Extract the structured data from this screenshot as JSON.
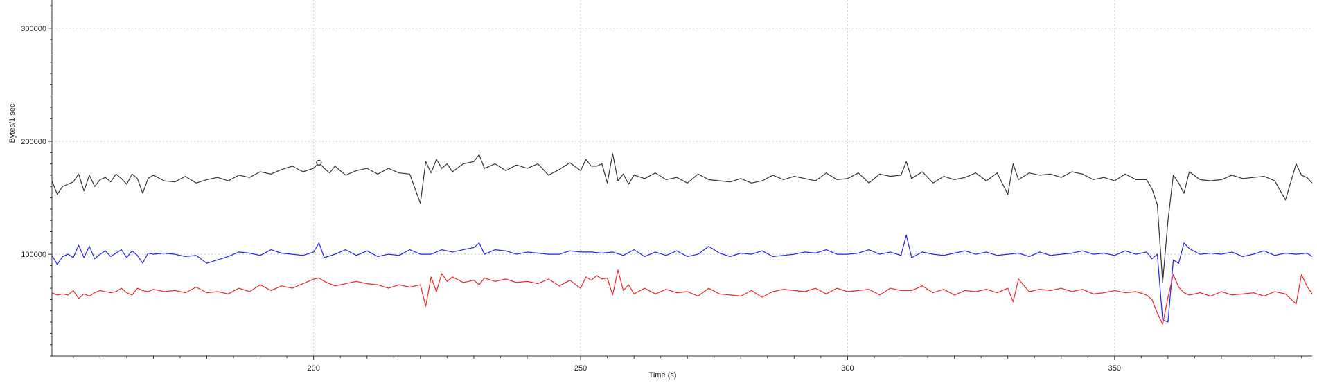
{
  "chart_data": {
    "type": "line",
    "xlabel": "Time (s)",
    "ylabel": "Bytes/1 sec",
    "xlim": [
      151,
      387
    ],
    "ylim": [
      10000,
      325000
    ],
    "x_ticks": [
      200,
      250,
      300,
      350
    ],
    "y_ticks": [
      100000,
      200000,
      300000
    ],
    "x_tick_labels": [
      "200",
      "250",
      "300",
      "350"
    ],
    "y_tick_labels": [
      "100000",
      "200000",
      "300000"
    ],
    "grid": true,
    "marker": {
      "x": 201,
      "y": 181000
    },
    "series": [
      {
        "color": "#333333",
        "x": [
          151,
          152,
          153,
          154,
          155,
          156,
          157,
          158,
          159,
          160,
          161,
          162,
          163,
          164,
          165,
          166,
          167,
          168,
          169,
          170,
          172,
          174,
          176,
          178,
          180,
          182,
          184,
          186,
          188,
          190,
          192,
          194,
          196,
          198,
          200,
          201,
          202,
          203,
          204,
          206,
          208,
          210,
          212,
          214,
          216,
          218,
          220,
          221,
          222,
          223,
          224,
          225,
          226,
          228,
          230,
          231,
          232,
          234,
          236,
          238,
          240,
          242,
          244,
          246,
          248,
          250,
          251,
          252,
          253,
          254,
          255,
          256,
          257,
          258,
          259,
          260,
          262,
          264,
          266,
          268,
          270,
          272,
          274,
          276,
          278,
          280,
          282,
          284,
          286,
          288,
          290,
          292,
          294,
          296,
          298,
          300,
          302,
          304,
          306,
          308,
          310,
          311,
          312,
          314,
          316,
          318,
          320,
          322,
          324,
          326,
          328,
          330,
          331,
          332,
          334,
          336,
          338,
          340,
          342,
          344,
          346,
          348,
          350,
          352,
          354,
          356,
          357,
          358,
          359,
          360,
          361,
          362,
          363,
          364,
          366,
          368,
          370,
          372,
          374,
          376,
          378,
          380,
          382,
          384,
          385,
          386,
          387
        ],
        "y": [
          165000,
          153000,
          160000,
          162000,
          164000,
          171000,
          156000,
          170000,
          160000,
          166000,
          168000,
          164000,
          171000,
          167000,
          162000,
          171000,
          167000,
          154000,
          167000,
          170000,
          165000,
          164000,
          169000,
          163000,
          166000,
          168000,
          165000,
          170000,
          168000,
          173000,
          171000,
          175000,
          178000,
          173000,
          176000,
          181000,
          176000,
          172000,
          178000,
          170000,
          174000,
          176000,
          171000,
          176000,
          172000,
          171000,
          145000,
          182000,
          172000,
          184000,
          176000,
          180000,
          173000,
          180000,
          182000,
          188000,
          176000,
          180000,
          174000,
          179000,
          176000,
          180000,
          170000,
          175000,
          181000,
          174000,
          184000,
          178000,
          178000,
          180000,
          163000,
          189000,
          165000,
          171000,
          162000,
          170000,
          167000,
          172000,
          166000,
          168000,
          163000,
          171000,
          166000,
          165000,
          164000,
          167000,
          163000,
          165000,
          170000,
          166000,
          169000,
          167000,
          165000,
          172000,
          166000,
          167000,
          172000,
          163000,
          171000,
          169000,
          170000,
          182000,
          167000,
          173000,
          163000,
          169000,
          166000,
          168000,
          172000,
          165000,
          172000,
          153000,
          180000,
          166000,
          172000,
          170000,
          171000,
          168000,
          173000,
          171000,
          166000,
          168000,
          165000,
          171000,
          166000,
          166000,
          158000,
          144000,
          75000,
          130000,
          170000,
          163000,
          154000,
          173000,
          166000,
          165000,
          166000,
          170000,
          167000,
          168000,
          169000,
          165000,
          148000,
          180000,
          170000,
          168000,
          163000
        ]
      },
      {
        "color": "#2222ee",
        "x": [
          151,
          152,
          153,
          154,
          155,
          156,
          157,
          158,
          159,
          160,
          161,
          162,
          163,
          164,
          165,
          166,
          167,
          168,
          169,
          170,
          172,
          174,
          176,
          178,
          180,
          182,
          184,
          186,
          188,
          190,
          192,
          194,
          196,
          198,
          200,
          201,
          202,
          204,
          206,
          208,
          210,
          212,
          214,
          216,
          218,
          220,
          222,
          224,
          226,
          228,
          230,
          231,
          232,
          234,
          236,
          238,
          240,
          242,
          244,
          246,
          248,
          250,
          252,
          254,
          256,
          258,
          260,
          262,
          264,
          266,
          268,
          270,
          272,
          274,
          276,
          278,
          280,
          282,
          284,
          286,
          288,
          290,
          292,
          294,
          296,
          298,
          300,
          302,
          304,
          306,
          308,
          310,
          311,
          312,
          314,
          316,
          318,
          320,
          322,
          324,
          326,
          328,
          330,
          332,
          334,
          336,
          338,
          340,
          342,
          344,
          346,
          348,
          350,
          352,
          354,
          356,
          357,
          358,
          359,
          360,
          361,
          362,
          363,
          364,
          366,
          368,
          370,
          372,
          374,
          376,
          378,
          380,
          382,
          384,
          386,
          387
        ],
        "y": [
          99000,
          91000,
          98000,
          100000,
          97000,
          108000,
          97000,
          107000,
          96000,
          100000,
          103000,
          98000,
          101000,
          104000,
          97000,
          103000,
          99000,
          92000,
          101000,
          100000,
          101000,
          100000,
          98000,
          99000,
          92000,
          95000,
          98000,
          102000,
          101000,
          99000,
          104000,
          101000,
          100000,
          99000,
          102000,
          110000,
          97000,
          100000,
          104000,
          99000,
          103000,
          98000,
          100000,
          99000,
          104000,
          100000,
          100000,
          104000,
          102000,
          104000,
          106000,
          110000,
          100000,
          104000,
          103000,
          100000,
          102000,
          101000,
          100000,
          100000,
          103000,
          102000,
          102000,
          101000,
          102000,
          99000,
          104000,
          98000,
          102000,
          99000,
          103000,
          98000,
          100000,
          107000,
          101000,
          98000,
          101000,
          100000,
          103000,
          98000,
          99000,
          100000,
          102000,
          101000,
          104000,
          100000,
          100000,
          101000,
          104000,
          100000,
          102000,
          99000,
          117000,
          97000,
          102000,
          100000,
          99000,
          101000,
          103000,
          100000,
          102000,
          99000,
          100000,
          101000,
          98000,
          102000,
          99000,
          100000,
          101000,
          103000,
          100000,
          101000,
          99000,
          103000,
          100000,
          102000,
          96000,
          100000,
          42000,
          40000,
          95000,
          92000,
          110000,
          105000,
          100000,
          101000,
          100000,
          102000,
          98000,
          100000,
          103000,
          99000,
          101000,
          100000,
          101000,
          98000
        ]
      },
      {
        "color": "#ee2222",
        "x": [
          151,
          152,
          153,
          154,
          155,
          156,
          157,
          158,
          159,
          160,
          161,
          162,
          163,
          164,
          165,
          166,
          167,
          168,
          169,
          170,
          172,
          174,
          176,
          178,
          180,
          182,
          184,
          186,
          188,
          190,
          192,
          194,
          196,
          198,
          200,
          201,
          202,
          204,
          206,
          208,
          210,
          212,
          214,
          216,
          218,
          220,
          221,
          222,
          223,
          224,
          225,
          226,
          228,
          230,
          231,
          232,
          234,
          236,
          238,
          240,
          242,
          244,
          246,
          248,
          250,
          251,
          252,
          253,
          254,
          255,
          256,
          257,
          258,
          259,
          260,
          262,
          264,
          266,
          268,
          270,
          272,
          274,
          276,
          278,
          280,
          282,
          284,
          286,
          288,
          290,
          292,
          294,
          296,
          298,
          300,
          302,
          304,
          306,
          308,
          310,
          312,
          314,
          316,
          318,
          320,
          322,
          324,
          326,
          328,
          330,
          331,
          332,
          334,
          336,
          338,
          340,
          342,
          344,
          346,
          348,
          350,
          352,
          354,
          356,
          357,
          358,
          359,
          360,
          361,
          362,
          363,
          364,
          366,
          368,
          370,
          372,
          374,
          376,
          378,
          380,
          382,
          384,
          385,
          386,
          387
        ],
        "y": [
          66000,
          64000,
          65000,
          64000,
          68000,
          61000,
          65000,
          63000,
          66000,
          68000,
          67000,
          66000,
          67000,
          70000,
          66000,
          64000,
          70000,
          68000,
          67000,
          69000,
          67000,
          68000,
          66000,
          71000,
          66000,
          67000,
          65000,
          70000,
          67000,
          73000,
          68000,
          72000,
          70000,
          74000,
          78000,
          79000,
          76000,
          72000,
          74000,
          76000,
          74000,
          73000,
          70000,
          73000,
          71000,
          73000,
          54000,
          80000,
          67000,
          83000,
          76000,
          80000,
          75000,
          77000,
          73000,
          79000,
          76000,
          78000,
          75000,
          76000,
          74000,
          78000,
          72000,
          77000,
          70000,
          80000,
          77000,
          81000,
          78000,
          79000,
          64000,
          86000,
          68000,
          73000,
          65000,
          70000,
          65000,
          69000,
          66000,
          67000,
          63000,
          70000,
          65000,
          64000,
          63000,
          68000,
          62000,
          67000,
          69000,
          68000,
          67000,
          70000,
          65000,
          70000,
          67000,
          68000,
          69000,
          64000,
          70000,
          68000,
          68000,
          72000,
          66000,
          69000,
          64000,
          68000,
          67000,
          69000,
          66000,
          70000,
          58000,
          78000,
          67000,
          69000,
          68000,
          70000,
          67000,
          69000,
          65000,
          66000,
          68000,
          66000,
          67000,
          64000,
          60000,
          48000,
          38000,
          62000,
          82000,
          71000,
          66000,
          64000,
          66000,
          63000,
          67000,
          64000,
          65000,
          66000,
          63000,
          67000,
          65000,
          56000,
          82000,
          72000,
          65000
        ]
      }
    ]
  }
}
